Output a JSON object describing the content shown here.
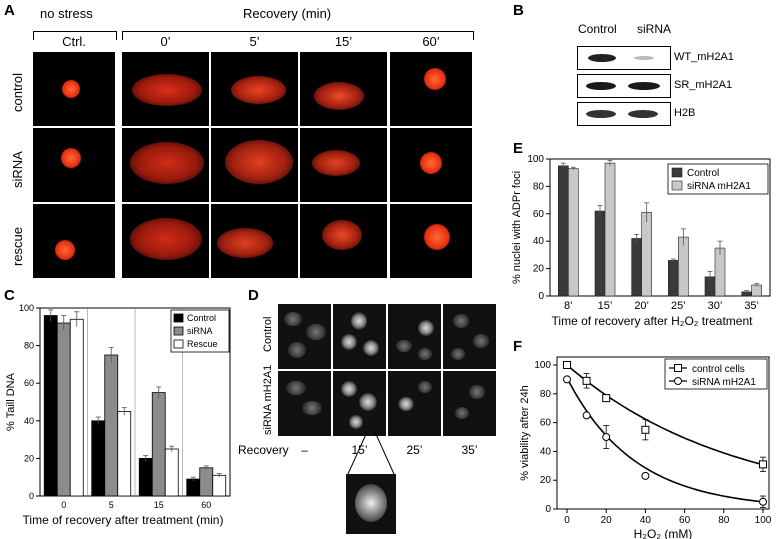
{
  "panels": {
    "A": "A",
    "B": "B",
    "C": "C",
    "D": "D",
    "E": "E",
    "F": "F"
  },
  "panel_a": {
    "header_left": "no stress",
    "header_right": "Recovery (min)",
    "columns": [
      "Ctrl.",
      "0’",
      "5’",
      "15’",
      "60’"
    ],
    "rows": [
      "control",
      "siRNA",
      "rescue"
    ]
  },
  "panel_b": {
    "columns": [
      "Control",
      "siRNA"
    ],
    "blots": [
      "WT_mH2A1",
      "SR_mH2A1",
      "H2B"
    ]
  },
  "panel_d": {
    "rows": [
      "Control",
      "siRNA mH2A1"
    ],
    "row_label": "Recovery",
    "columns": [
      "–",
      "15’",
      "25’",
      "35’"
    ]
  },
  "chart_data": [
    {
      "id": "C",
      "type": "bar",
      "categories": [
        "0",
        "5",
        "15",
        "60"
      ],
      "series": [
        {
          "name": "Control",
          "values": [
            96,
            40,
            20,
            9
          ],
          "errors": [
            3,
            2,
            1.5,
            1
          ],
          "color": "#000000"
        },
        {
          "name": "siRNA",
          "values": [
            92,
            75,
            55,
            15
          ],
          "errors": [
            4,
            4,
            3,
            1
          ],
          "color": "#8c8c8c"
        },
        {
          "name": "Rescue",
          "values": [
            94,
            45,
            25,
            11
          ],
          "errors": [
            4,
            2,
            1.5,
            1
          ],
          "color": "#ffffff"
        }
      ],
      "xlabel": "Time of recovery after treatment (min)",
      "ylabel": "% Taill DNA",
      "ylim": [
        0,
        100
      ],
      "yticks": [
        0,
        20,
        40,
        60,
        80,
        100
      ],
      "legend": "top-right"
    },
    {
      "id": "E",
      "type": "bar",
      "categories": [
        "8’",
        "15’",
        "20’",
        "25’",
        "30’",
        "35’"
      ],
      "series": [
        {
          "name": "Control",
          "values": [
            95,
            62,
            42,
            26,
            14,
            3
          ],
          "errors": [
            2,
            4,
            3,
            1,
            4,
            1
          ],
          "color": "#3a3a3a"
        },
        {
          "name": "siRNA mH2A1",
          "values": [
            93,
            97,
            61,
            43,
            35,
            8
          ],
          "errors": [
            1,
            2,
            7,
            6,
            5,
            1
          ],
          "color": "#c8c8c8"
        }
      ],
      "xlabel": "Time of recovery after H₂O₂ treatment",
      "ylabel": "% nuclei with ADPr foci",
      "ylim": [
        0,
        100
      ],
      "yticks": [
        0,
        20,
        40,
        60,
        80,
        100
      ],
      "legend": "top-right"
    },
    {
      "id": "F",
      "type": "scatter",
      "series": [
        {
          "name": "control cells",
          "x": [
            0,
            10,
            20,
            40,
            100
          ],
          "y": [
            100,
            89,
            77,
            55,
            31
          ],
          "errors": [
            1,
            5,
            1,
            7,
            5
          ],
          "marker": "square"
        },
        {
          "name": "siRNA mH2A1",
          "x": [
            0,
            10,
            20,
            40,
            100
          ],
          "y": [
            90,
            65,
            50,
            23,
            5
          ],
          "errors": [
            1,
            1,
            8,
            1,
            4
          ],
          "marker": "circle"
        }
      ],
      "xlabel": "H₂O₂ (mM)",
      "ylabel": "% viability after 24h",
      "xlim": [
        0,
        100
      ],
      "ylim": [
        0,
        100
      ],
      "xticks": [
        0,
        20,
        40,
        60,
        80,
        100
      ],
      "yticks": [
        0,
        20,
        40,
        60,
        80,
        100
      ],
      "legend": "top-right"
    }
  ]
}
